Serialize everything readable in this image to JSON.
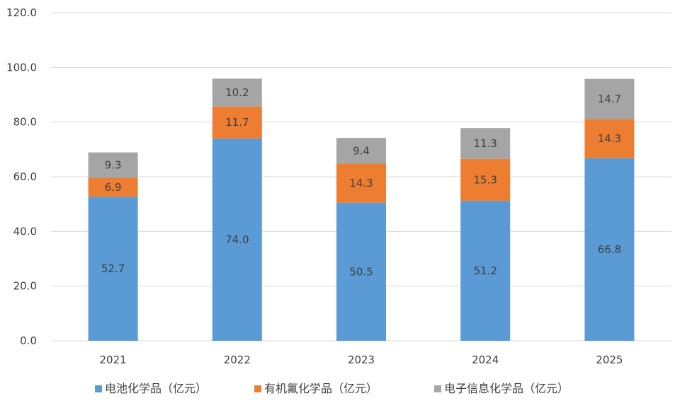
{
  "chart_data": {
    "type": "bar",
    "stacked": true,
    "categories": [
      "2021",
      "2022",
      "2023",
      "2024",
      "2025"
    ],
    "series": [
      {
        "name": "电池化学品（亿元）",
        "color": "#5b9bd5",
        "values": [
          52.7,
          74.0,
          50.5,
          51.2,
          66.8
        ],
        "labels": [
          "52.7",
          "74.0",
          "50.5",
          "51.2",
          "66.8"
        ]
      },
      {
        "name": "有机氟化学品（亿元）",
        "color": "#ed7d31",
        "values": [
          6.9,
          11.7,
          14.3,
          15.3,
          14.3
        ],
        "labels": [
          "6.9",
          "11.7",
          "14.3",
          "15.3",
          "14.3"
        ]
      },
      {
        "name": "电子信息化学品（亿元）",
        "color": "#a5a5a5",
        "values": [
          9.3,
          10.2,
          9.4,
          11.3,
          14.7
        ],
        "labels": [
          "9.3",
          "10.2",
          "9.4",
          "11.3",
          "14.7"
        ]
      }
    ],
    "ylim": [
      0,
      120
    ],
    "yticks": [
      "0.0",
      "20.0",
      "40.0",
      "60.0",
      "80.0",
      "100.0",
      "120.0"
    ],
    "grid": true,
    "legend_position": "bottom"
  }
}
